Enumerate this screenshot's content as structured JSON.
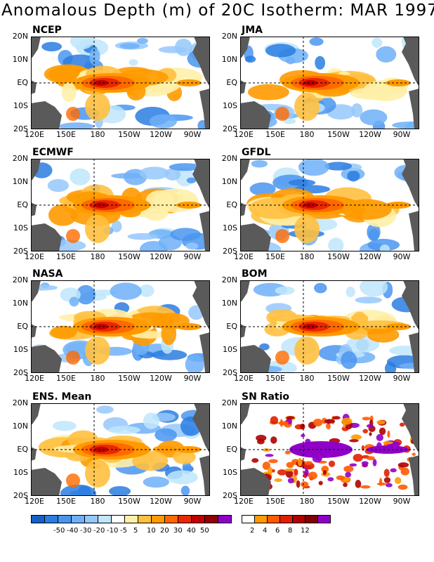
{
  "title": "Anomalous Depth (m) of 20C Isotherm: MAR 1997",
  "lat_labels": [
    "20N",
    "10N",
    "EQ",
    "10S",
    "20S"
  ],
  "lon_labels": [
    "120E",
    "150E",
    "180",
    "150W",
    "120W",
    "90W"
  ],
  "panels": [
    {
      "label": "NCEP"
    },
    {
      "label": "JMA"
    },
    {
      "label": "ECMWF"
    },
    {
      "label": "GFDL"
    },
    {
      "label": "NASA"
    },
    {
      "label": "BOM"
    },
    {
      "label": "ENS. Mean"
    },
    {
      "label": "SN Ratio"
    }
  ],
  "legend_anomaly": {
    "colors": [
      "#1560c8",
      "#2a7de0",
      "#4a95f0",
      "#6fb0f8",
      "#96c8fc",
      "#c0e6fc",
      "#ffffff",
      "#fff0a8",
      "#ffc040",
      "#ff9a00",
      "#ff6a00",
      "#e82800",
      "#c00000",
      "#900000",
      "#9000c8"
    ],
    "labels": [
      "-50",
      "-40",
      "-30",
      "-20",
      "-10",
      "-5",
      "5",
      "10",
      "20",
      "30",
      "40",
      "50"
    ]
  },
  "legend_sn": {
    "colors": [
      "#ffffff",
      "#ff9a00",
      "#ff5a00",
      "#e02000",
      "#b00000",
      "#800000",
      "#9000c8"
    ],
    "labels": [
      "2",
      "4",
      "6",
      "8",
      "12"
    ]
  },
  "colors": {
    "land": "#5a5a5a",
    "warm": "#ff9a00",
    "hot": "#e82800",
    "cold": "#4a95f0",
    "purple": "#9000c8"
  }
}
